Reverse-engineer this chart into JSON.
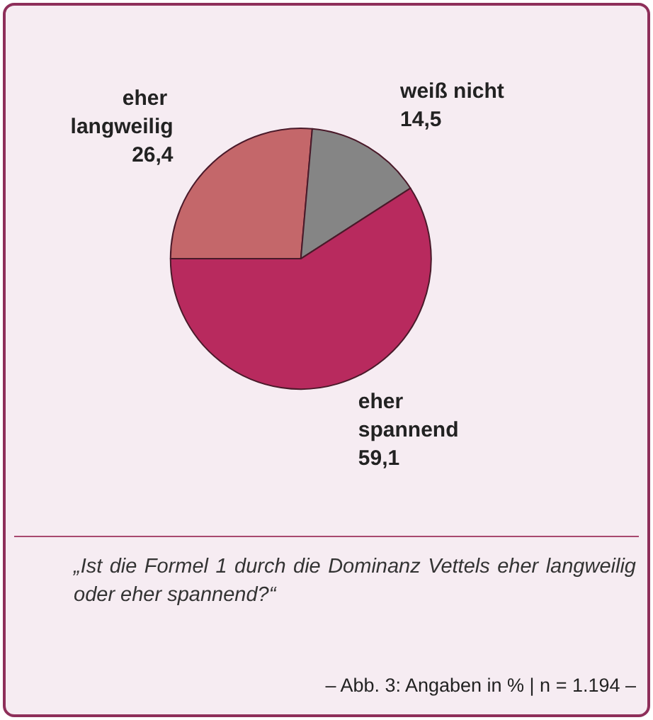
{
  "chart_data": {
    "type": "pie",
    "categories": [
      "eher langweilig",
      "weiß nicht",
      "eher spannend"
    ],
    "values": [
      26.4,
      14.5,
      59.1
    ],
    "colors": [
      "#c4676a",
      "#858585",
      "#b82a5e"
    ],
    "value_labels": [
      "26,4",
      "14,5",
      "59,1"
    ],
    "annotations": [
      "„Ist die Formel 1 durch die Dominanz Vettels eher langweilig oder eher spannend?“",
      "– Abb. 3: Angaben in % | n = 1.194 –"
    ]
  }
}
